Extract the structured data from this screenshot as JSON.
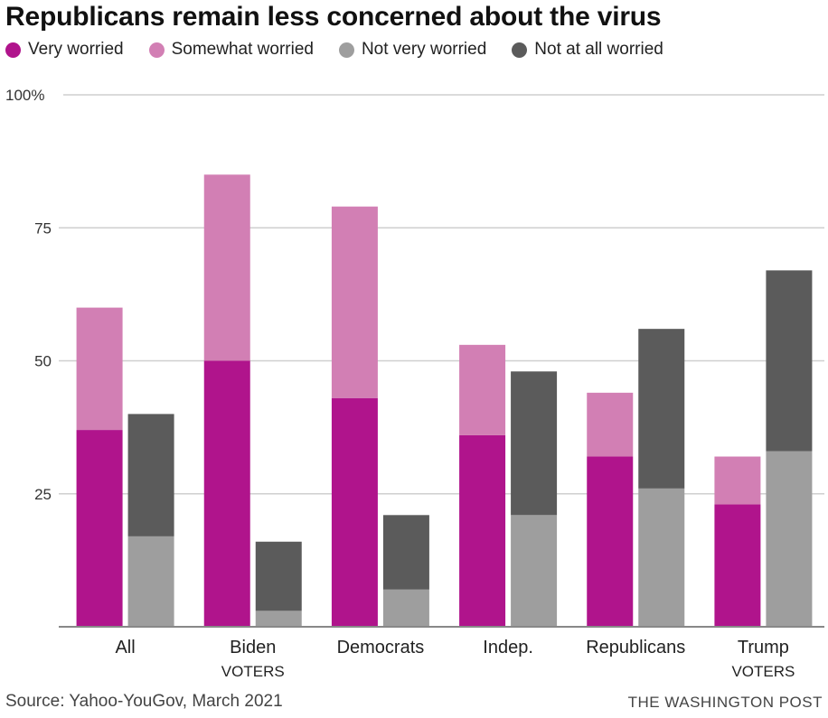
{
  "chart_data": {
    "type": "bar",
    "subtype": "grouped-stacked",
    "title": "Republicans remain less concerned about the virus",
    "xlabel": "",
    "ylabel": "",
    "ylim": [
      0,
      100
    ],
    "yticks": [
      {
        "value": 100,
        "label": "100%"
      },
      {
        "value": 75,
        "label": "75"
      },
      {
        "value": 50,
        "label": "50"
      },
      {
        "value": 25,
        "label": "25"
      }
    ],
    "grid": true,
    "legend_position": "top-left",
    "categories": [
      {
        "label": "All",
        "sublabel": ""
      },
      {
        "label": "Biden",
        "sublabel": "VOTERS"
      },
      {
        "label": "Democrats",
        "sublabel": ""
      },
      {
        "label": "Indep.",
        "sublabel": ""
      },
      {
        "label": "Republicans",
        "sublabel": ""
      },
      {
        "label": "Trump",
        "sublabel": "VOTERS"
      }
    ],
    "series": [
      {
        "name": "Very worried",
        "color": "#b0148c",
        "stack": "worried",
        "values": [
          37,
          50,
          43,
          36,
          32,
          23
        ]
      },
      {
        "name": "Somewhat worried",
        "color": "#d27fb4",
        "stack": "worried",
        "values": [
          23,
          35,
          36,
          17,
          12,
          9
        ]
      },
      {
        "name": "Not very worried",
        "color": "#9e9e9e",
        "stack": "not-worried",
        "values": [
          17,
          3,
          7,
          21,
          26,
          33
        ]
      },
      {
        "name": "Not at all worried",
        "color": "#5b5b5b",
        "stack": "not-worried",
        "values": [
          23,
          13,
          14,
          27,
          30,
          34
        ]
      }
    ],
    "legend_order": [
      "Very worried",
      "Somewhat worried",
      "Not very worried",
      "Not at all worried"
    ]
  },
  "footer": {
    "source": "Source: Yahoo-YouGov, March 2021",
    "brand": "THE WASHINGTON POST"
  }
}
